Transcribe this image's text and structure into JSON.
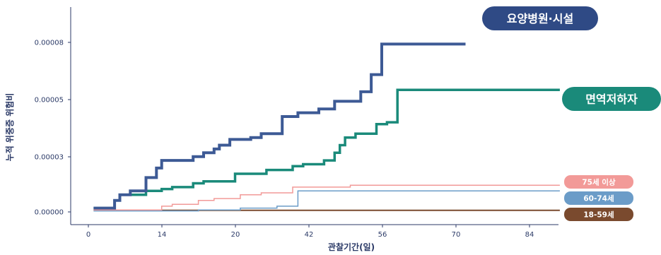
{
  "chart_data": {
    "type": "line",
    "xlabel": "관찰기간(일)",
    "ylabel": "누적 위중증 위험비",
    "x_ticks": [
      "0",
      "14",
      "20",
      "42",
      "56",
      "70",
      "84"
    ],
    "y_ticks": [
      "0.00000",
      "0.00003",
      "0.00005",
      "0.00008"
    ],
    "xlim": [
      0,
      90
    ],
    "ylim": [
      0,
      0.00011
    ],
    "series": [
      {
        "name": "요양병원·시설",
        "color": "#3d5a95",
        "x": [
          1,
          5,
          6,
          8,
          11,
          13,
          14,
          20,
          22,
          24,
          25,
          27,
          31,
          33,
          37,
          40,
          44,
          47,
          52,
          54,
          56,
          72
        ],
        "y": [
          2e-06,
          6e-06,
          9e-06,
          1.1e-05,
          1.8e-05,
          2.3e-05,
          2.7e-05,
          2.9e-05,
          3.1e-05,
          3.3e-05,
          3.5e-05,
          3.8e-05,
          3.9e-05,
          4.1e-05,
          5e-05,
          5.2e-05,
          5.4e-05,
          5.8e-05,
          6.3e-05,
          7.2e-05,
          8.8e-05,
          8.8e-05
        ]
      },
      {
        "name": "면역저하자",
        "color": "#1a8a7a",
        "x": [
          1,
          5,
          6,
          11,
          14,
          16,
          20,
          22,
          26,
          28,
          34,
          39,
          41,
          45,
          47,
          48,
          49,
          51,
          55,
          57,
          59,
          90
        ],
        "y": [
          2e-06,
          6e-06,
          9e-06,
          1.1e-05,
          1.2e-05,
          1.3e-05,
          1.5e-05,
          1.6e-05,
          1.6e-05,
          2e-05,
          2.2e-05,
          2.4e-05,
          2.5e-05,
          2.7e-05,
          3.1e-05,
          3.5e-05,
          3.9e-05,
          4.1e-05,
          4.6e-05,
          4.7e-05,
          6.4e-05,
          6.4e-05
        ]
      },
      {
        "name": "75세 이상",
        "color": "#f29a98",
        "x": [
          1,
          9,
          14,
          16,
          21,
          24,
          29,
          33,
          39,
          44,
          50,
          90
        ],
        "y": [
          1e-06,
          1e-06,
          3e-06,
          4e-06,
          6e-06,
          7e-06,
          9e-06,
          1e-05,
          1.3e-05,
          1.3e-05,
          1.4e-05,
          1.4e-05
        ]
      },
      {
        "name": "60-74세",
        "color": "#6b9cc8",
        "x": [
          1,
          15,
          21,
          29,
          36,
          40,
          90
        ],
        "y": [
          5e-07,
          5e-07,
          1e-06,
          2e-06,
          3e-06,
          1.1e-05,
          1.1e-05
        ]
      },
      {
        "name": "18-59세",
        "color": "#7a4a2e",
        "x": [
          1,
          90
        ],
        "y": [
          8e-07,
          8e-07
        ]
      }
    ],
    "legend": "right-inline labels"
  },
  "labels": {
    "s0": "요양병원·시설",
    "s1": "면역저하자",
    "s2": "75세 이상",
    "s3": "60-74세",
    "s4": "18-59세"
  }
}
